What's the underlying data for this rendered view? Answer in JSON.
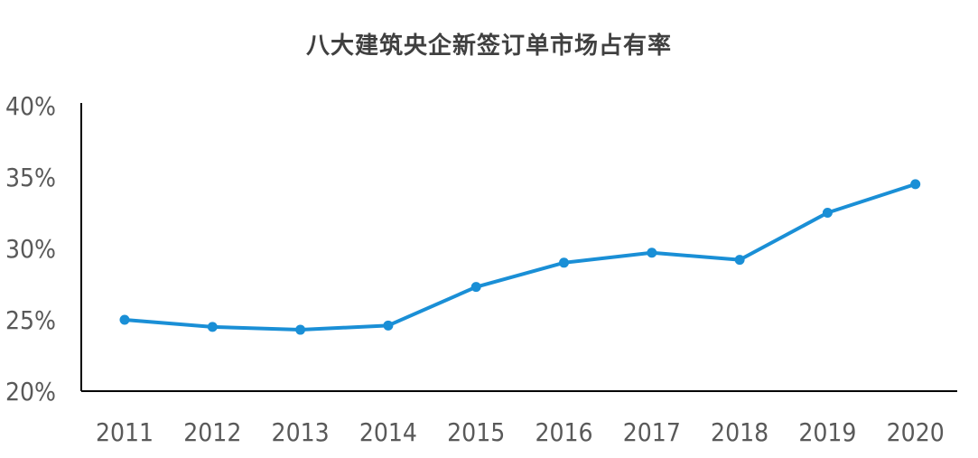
{
  "chart_data": {
    "type": "line",
    "title": "八大建筑央企新签订单市场占有率",
    "xlabel": "",
    "ylabel": "",
    "categories": [
      "2011",
      "2012",
      "2013",
      "2014",
      "2015",
      "2016",
      "2017",
      "2018",
      "2019",
      "2020"
    ],
    "series": [
      {
        "values": [
          25.0,
          24.5,
          24.3,
          24.6,
          27.3,
          29.0,
          29.7,
          29.2,
          32.5,
          34.5
        ]
      }
    ],
    "ylim": [
      20,
      40
    ],
    "yticks": [
      "20%",
      "25%",
      "30%",
      "35%",
      "40%"
    ],
    "grid": false,
    "legend": "none",
    "colors": {
      "line": "#1a8fd6",
      "axis": "#000000",
      "text": "#595959",
      "title": "#404040"
    }
  }
}
